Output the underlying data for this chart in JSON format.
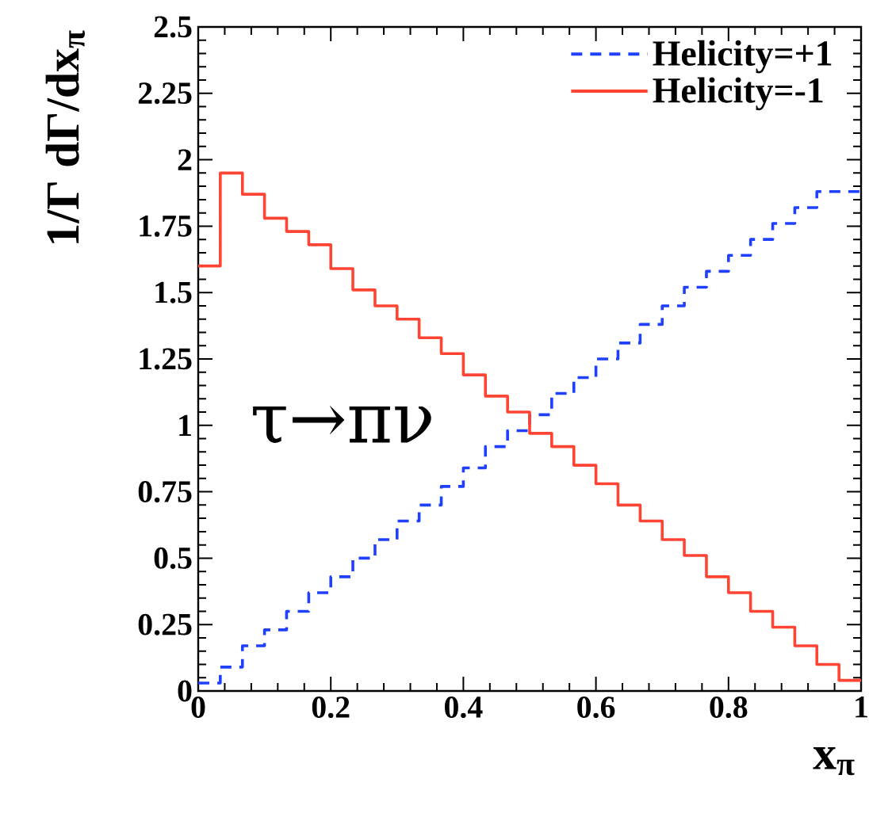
{
  "chart_data": {
    "type": "histogram",
    "xlabel": "x$_{π}$",
    "ylabel": "1/Γ dΓ/dx$_{π}$",
    "bins": [
      0,
      0.0333,
      0.0667,
      0.1,
      0.1333,
      0.1667,
      0.2,
      0.2333,
      0.2667,
      0.3,
      0.3333,
      0.3667,
      0.4,
      0.4333,
      0.4667,
      0.5,
      0.5333,
      0.5667,
      0.6,
      0.6333,
      0.6667,
      0.7,
      0.7333,
      0.7667,
      0.8,
      0.8333,
      0.8667,
      0.9,
      0.9333,
      0.9667,
      1
    ],
    "series": [
      {
        "name": "Helicity=+1",
        "color": "#2040ff",
        "line_style": "dashed",
        "values": [
          0.03,
          0.09,
          0.17,
          0.23,
          0.3,
          0.37,
          0.43,
          0.5,
          0.57,
          0.64,
          0.7,
          0.77,
          0.84,
          0.92,
          0.98,
          1.04,
          1.12,
          1.18,
          1.25,
          1.31,
          1.38,
          1.45,
          1.52,
          1.58,
          1.64,
          1.7,
          1.76,
          1.82,
          1.88,
          1.88
        ]
      },
      {
        "name": "Helicity=-1",
        "color": "#ff4433",
        "line_style": "solid",
        "values": [
          1.6,
          1.95,
          1.87,
          1.78,
          1.73,
          1.68,
          1.59,
          1.51,
          1.45,
          1.4,
          1.33,
          1.27,
          1.19,
          1.11,
          1.05,
          0.97,
          0.92,
          0.85,
          0.78,
          0.7,
          0.64,
          0.57,
          0.51,
          0.43,
          0.37,
          0.3,
          0.24,
          0.17,
          0.1,
          0.04
        ]
      }
    ],
    "xlim": [
      0,
      1
    ],
    "ylim": [
      0,
      2.5
    ],
    "xticks": [
      0,
      0.2,
      0.4,
      0.6,
      0.8,
      1
    ],
    "yticks": [
      0,
      0.25,
      0.5,
      0.75,
      1,
      1.25,
      1.5,
      1.75,
      2,
      2.25,
      2.5
    ],
    "legend": "top right",
    "annotations": [
      "τ→πν"
    ]
  }
}
